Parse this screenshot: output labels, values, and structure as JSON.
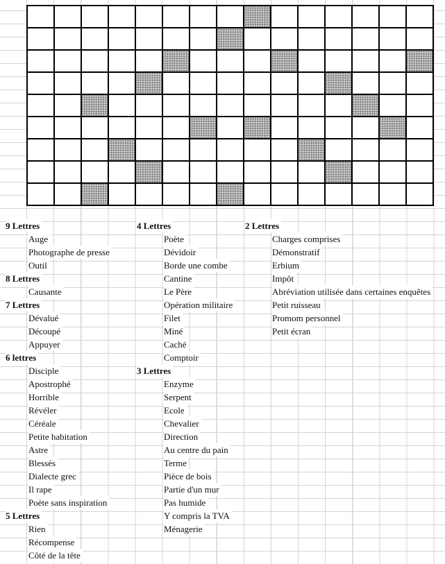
{
  "crossword": {
    "rows": 9,
    "cols": 15,
    "shaded": [
      [
        0,
        8
      ],
      [
        1,
        7
      ],
      [
        2,
        5
      ],
      [
        2,
        9
      ],
      [
        2,
        14
      ],
      [
        3,
        4
      ],
      [
        3,
        11
      ],
      [
        4,
        2
      ],
      [
        4,
        12
      ],
      [
        5,
        6
      ],
      [
        5,
        8
      ],
      [
        5,
        13
      ],
      [
        6,
        3
      ],
      [
        6,
        10
      ],
      [
        7,
        4
      ],
      [
        7,
        11
      ],
      [
        8,
        2
      ],
      [
        8,
        7
      ]
    ]
  },
  "columns": [
    {
      "groups": [
        {
          "title": "9 Lettres",
          "clues": [
            "Auge",
            "Photographe de presse",
            "Outil"
          ]
        },
        {
          "title": "8 Lettres",
          "clues": [
            "Causante"
          ]
        },
        {
          "title": "7 Lettres",
          "clues": [
            "Dévalué",
            "Découpé",
            "Appuyer"
          ]
        },
        {
          "title": "6 lettres",
          "clues": [
            "Disciple",
            "Apostrophé",
            "Horrible",
            "Révéler",
            "Céréale",
            "Petite habitation",
            "Astre",
            "Blessés",
            "Dialecte grec",
            "Il rape",
            "Poète sans inspiration"
          ]
        },
        {
          "title": "5 Lettres",
          "clues": [
            "Rien",
            "Récompense",
            "Côté de la tête"
          ]
        }
      ]
    },
    {
      "groups": [
        {
          "title": "4 Lettres",
          "clues": [
            "Poète",
            "Dévidoir",
            "Borde une combe",
            "Cantine",
            "Le Père",
            "Opération militaire",
            "Filet",
            "Miné",
            "Caché",
            "Comptoir"
          ]
        },
        {
          "title": "3 Lettres",
          "clues": [
            "Enzyme",
            "Serpent",
            "Ecole",
            "Chevalier",
            "Direction",
            "Au centre du pain",
            "Terme",
            "Pièce de bois",
            "Partie d'un mur",
            "Pas humide",
            "Y compris la TVA",
            "Ménagerie"
          ]
        }
      ]
    },
    {
      "groups": [
        {
          "title": "2 Lettres",
          "clues": [
            "Charges comprises",
            "Démonstratif",
            "Erbium",
            "Impôt",
            "Abréviation utilisée dans certaines enquêtes",
            "Petit ruisseau",
            "Promom personnel",
            "Petit écran"
          ]
        }
      ]
    }
  ]
}
